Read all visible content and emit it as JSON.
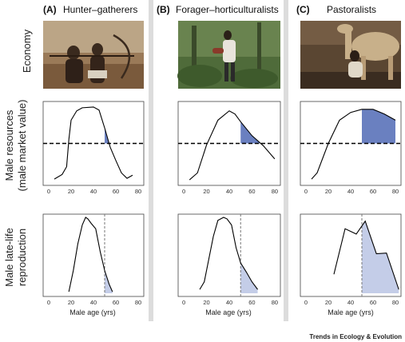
{
  "panels": [
    {
      "letter": "(A)",
      "title": "Hunter–gatherers"
    },
    {
      "letter": "(B)",
      "title": "Forager–horticulturalists"
    },
    {
      "letter": "(C)",
      "title": "Pastoralists"
    }
  ],
  "row_labels": {
    "economy": "Economy",
    "resources": [
      "Male resources",
      "(male market value)"
    ],
    "reproduction": [
      "Male late-life",
      "reproduction"
    ]
  },
  "x_axis_label": "Male age (yrs)",
  "credit": "Trends in Ecology & Evolution",
  "photo_alt": [
    "Two hunter-gatherer men aiming bows",
    "Man carrying a load walking through forest",
    "Man crouching beside a camel"
  ],
  "colors": {
    "dark_fill": "#6a80c0",
    "light_fill": "#c4cde8",
    "line": "#000000",
    "photo_a": "#8a6a4a",
    "photo_b": "#4f6b3a",
    "photo_c": "#5a4632"
  },
  "chart_data": [
    {
      "type": "line",
      "panel": "A",
      "row": "resources",
      "xlim": [
        -5,
        85
      ],
      "xticks": [
        0,
        20,
        40,
        60,
        80
      ],
      "x": [
        5,
        12,
        16,
        18,
        20,
        25,
        30,
        40,
        45,
        50,
        55,
        60,
        65,
        70,
        75
      ],
      "y": [
        0.04,
        0.1,
        0.2,
        0.55,
        0.8,
        0.92,
        0.96,
        0.97,
        0.93,
        0.7,
        0.45,
        0.28,
        0.12,
        0.05,
        0.09
      ],
      "threshold": 0.5,
      "shade_from": 50
    },
    {
      "type": "line",
      "panel": "B",
      "row": "resources",
      "xlim": [
        -5,
        85
      ],
      "xticks": [
        0,
        20,
        40,
        60,
        80
      ],
      "x": [
        5,
        12,
        20,
        30,
        40,
        45,
        50,
        60,
        70,
        80
      ],
      "y": [
        0.03,
        0.12,
        0.48,
        0.8,
        0.92,
        0.88,
        0.78,
        0.6,
        0.47,
        0.3
      ],
      "threshold": 0.5,
      "shade_from": 50
    },
    {
      "type": "line",
      "panel": "C",
      "row": "resources",
      "xlim": [
        -5,
        85
      ],
      "xticks": [
        0,
        20,
        40,
        60,
        80
      ],
      "x": [
        5,
        10,
        20,
        30,
        40,
        50,
        60,
        70,
        80
      ],
      "y": [
        0.04,
        0.12,
        0.5,
        0.8,
        0.9,
        0.94,
        0.94,
        0.88,
        0.8
      ],
      "threshold": 0.5,
      "shade_from": 50
    },
    {
      "type": "line",
      "panel": "A",
      "row": "reproduction",
      "xlim": [
        -5,
        85
      ],
      "xticks": [
        0,
        20,
        40,
        60,
        80
      ],
      "x": [
        18,
        22,
        26,
        30,
        33,
        35,
        38,
        42,
        46,
        50,
        54,
        57
      ],
      "y": [
        0.02,
        0.3,
        0.65,
        0.9,
        1.0,
        0.98,
        0.92,
        0.85,
        0.55,
        0.3,
        0.12,
        0.02
      ],
      "vline": 50,
      "shade_from": 50
    },
    {
      "type": "line",
      "panel": "B",
      "row": "reproduction",
      "xlim": [
        -5,
        85
      ],
      "xticks": [
        0,
        20,
        40,
        60,
        80
      ],
      "x": [
        14,
        18,
        22,
        26,
        30,
        35,
        38,
        42,
        46,
        50,
        55,
        60,
        65
      ],
      "y": [
        0.05,
        0.15,
        0.45,
        0.75,
        0.96,
        1.0,
        0.98,
        0.9,
        0.6,
        0.4,
        0.28,
        0.15,
        0.05
      ],
      "vline": 50,
      "shade_from": 50
    },
    {
      "type": "line",
      "panel": "C",
      "row": "reproduction",
      "xlim": [
        -5,
        85
      ],
      "xticks": [
        0,
        20,
        40,
        60,
        80
      ],
      "x": [
        25,
        35,
        45,
        53,
        63,
        72,
        83
      ],
      "y": [
        0.25,
        0.85,
        0.78,
        0.95,
        0.52,
        0.53,
        0.05
      ],
      "vline": 50,
      "shade_from": 50
    }
  ]
}
